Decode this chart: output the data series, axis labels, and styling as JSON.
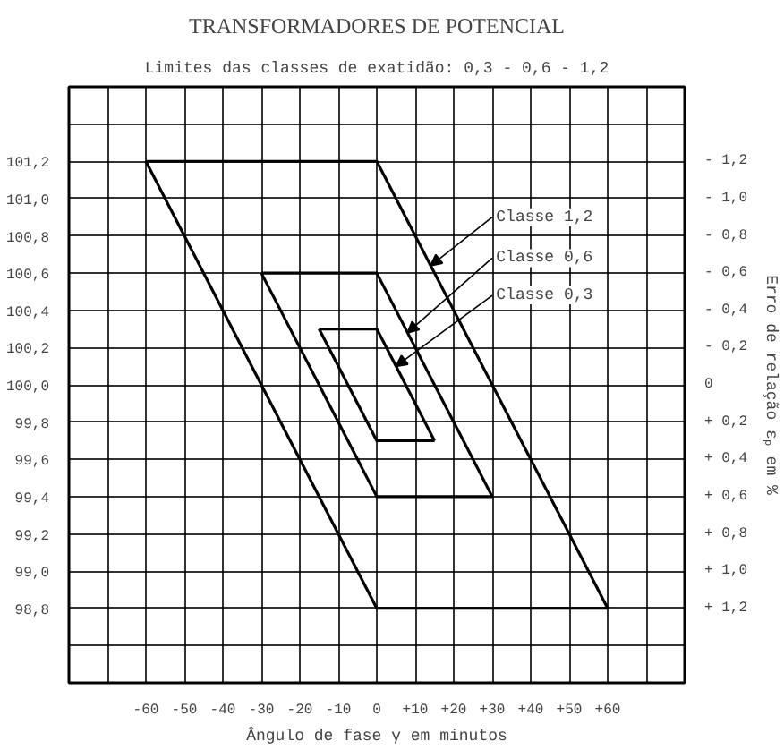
{
  "chart_data": {
    "type": "line",
    "title": "TRANSFORMADORES DE POTENCIAL",
    "subtitle": "Limites das classes de exatidão: 0,3 - 0,6 - 1,2",
    "xlabel": "Ângulo de fase γ em minutos",
    "y2label": "Erro de relação εₚ em %",
    "xlim": [
      -80,
      80
    ],
    "ylim": [
      98.4,
      101.6
    ],
    "y2lim": [
      1.6,
      -1.6
    ],
    "xticks": [
      {
        "value": -80,
        "label": null
      },
      {
        "value": -70,
        "label": null
      },
      {
        "value": -60,
        "label": "-60"
      },
      {
        "value": -50,
        "label": "-50"
      },
      {
        "value": -40,
        "label": "-40"
      },
      {
        "value": -30,
        "label": "-30"
      },
      {
        "value": -20,
        "label": "-20"
      },
      {
        "value": -10,
        "label": "-10"
      },
      0,
      {
        "value": 10,
        "label": "+10"
      },
      {
        "value": 20,
        "label": "+20"
      },
      {
        "value": 30,
        "label": "+30"
      },
      {
        "value": 40,
        "label": "+40"
      },
      {
        "value": 50,
        "label": "+50"
      },
      {
        "value": 60,
        "label": "+60"
      },
      {
        "value": 70,
        "label": null
      },
      {
        "value": 80,
        "label": null
      }
    ],
    "yticks": [
      {
        "value": 98.4,
        "label": null
      },
      {
        "value": 98.6,
        "label": null
      },
      {
        "value": 98.8,
        "label": "98,8"
      },
      {
        "value": 99.0,
        "label": "99,0"
      },
      {
        "value": 99.2,
        "label": "99,2"
      },
      {
        "value": 99.4,
        "label": "99,4"
      },
      {
        "value": 99.6,
        "label": "99,6"
      },
      {
        "value": 99.8,
        "label": "99,8"
      },
      {
        "value": 100.0,
        "label": "100,0"
      },
      {
        "value": 100.2,
        "label": "100,2"
      },
      {
        "value": 100.4,
        "label": "100,4"
      },
      {
        "value": 100.6,
        "label": "100,6"
      },
      {
        "value": 100.8,
        "label": "100,8"
      },
      {
        "value": 101.0,
        "label": "101,0"
      },
      {
        "value": 101.2,
        "label": "101,2"
      },
      {
        "value": 101.4,
        "label": null
      },
      {
        "value": 101.6,
        "label": null
      }
    ],
    "y2ticks": [
      {
        "value": -1.2,
        "label": "- 1,2"
      },
      {
        "value": -1.0,
        "label": "- 1,0"
      },
      {
        "value": -0.8,
        "label": "- 0,8"
      },
      {
        "value": -0.6,
        "label": "- 0,6"
      },
      {
        "value": -0.4,
        "label": "- 0,4"
      },
      {
        "value": -0.2,
        "label": "- 0,2"
      },
      0,
      {
        "value": 0.2,
        "label": "+ 0,2"
      },
      {
        "value": 0.4,
        "label": "+ 0,4"
      },
      {
        "value": 0.6,
        "label": "+ 0,6"
      },
      {
        "value": 0.8,
        "label": "+ 0,8"
      },
      {
        "value": 1.0,
        "label": "+ 1,0"
      },
      {
        "value": 1.2,
        "label": "+ 1,2"
      }
    ],
    "grid": true,
    "marker": "none",
    "line_style": "solid",
    "series": [
      {
        "color": "#000000",
        "x": [
          -60,
          0,
          60
        ],
        "values": [
          101.2,
          101.2,
          98.8
        ]
      },
      {
        "color": "#000000",
        "x": [
          -60,
          0,
          60
        ],
        "values": [
          101.2,
          98.8,
          98.8
        ]
      },
      {
        "color": "#000000",
        "x": [
          -30,
          0,
          30
        ],
        "values": [
          100.6,
          100.6,
          99.4
        ]
      },
      {
        "color": "#000000",
        "x": [
          -30,
          0,
          30
        ],
        "values": [
          100.6,
          99.4,
          99.4
        ]
      },
      {
        "color": "#000000",
        "x": [
          -15,
          0,
          15
        ],
        "values": [
          100.3,
          100.3,
          99.7
        ]
      },
      {
        "color": "#000000",
        "x": [
          -15,
          0,
          15
        ],
        "values": [
          100.3,
          99.7,
          99.7
        ]
      }
    ],
    "annotations": [
      {
        "text": "Classe 1,2",
        "x": 14,
        "y": 100.64
      },
      {
        "text": "Classe 0,6",
        "x": 8,
        "y": 100.28
      },
      {
        "text": "Classe 0,3",
        "x": 5,
        "y": 100.1
      }
    ]
  }
}
